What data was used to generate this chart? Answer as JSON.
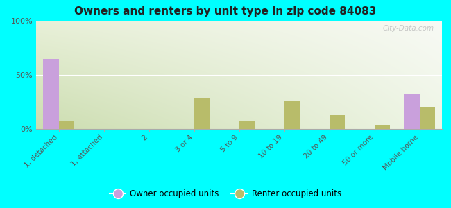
{
  "title": "Owners and renters by unit type in zip code 84083",
  "categories": [
    "1, detached",
    "1, attached",
    "2",
    "3 or 4",
    "5 to 9",
    "10 to 19",
    "20 to 49",
    "50 or more",
    "Mobile home"
  ],
  "owner_values": [
    65,
    0,
    0,
    0,
    0,
    0,
    0,
    0,
    33
  ],
  "renter_values": [
    8,
    0,
    0,
    28,
    8,
    26,
    13,
    3,
    20
  ],
  "owner_color": "#c9a0dc",
  "renter_color": "#b8bc6a",
  "background_color": "#00ffff",
  "ylim": [
    0,
    100
  ],
  "yticks": [
    0,
    50,
    100
  ],
  "ytick_labels": [
    "0%",
    "50%",
    "100%"
  ],
  "bar_width": 0.35,
  "legend_owner": "Owner occupied units",
  "legend_renter": "Renter occupied units",
  "watermark": "City-Data.com"
}
